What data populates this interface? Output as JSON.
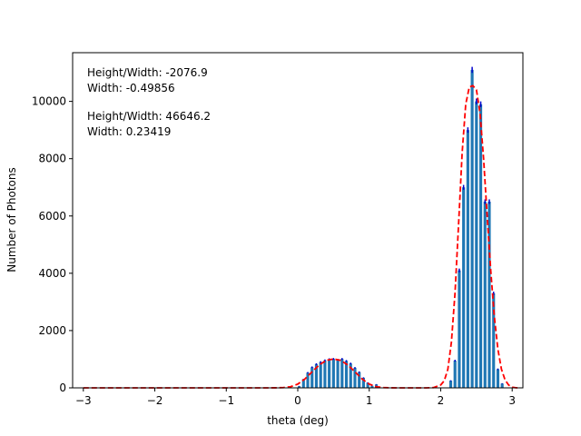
{
  "chart_data": {
    "type": "bar",
    "xlabel": "theta (deg)",
    "ylabel": "Number of Photons",
    "xlim": [
      -3.15,
      3.15
    ],
    "ylim": [
      0,
      11700
    ],
    "xticks": [
      -3,
      -2,
      -1,
      0,
      1,
      2,
      3
    ],
    "yticks": [
      0,
      2000,
      4000,
      6000,
      8000,
      10000
    ],
    "annotations": [
      {
        "lines": [
          "Height/Width: -2076.9",
          "Width: -0.49856"
        ]
      },
      {
        "lines": [
          "Height/Width: 46646.2",
          "Width: 0.23419"
        ]
      }
    ],
    "colors": {
      "bars": "#1f77b4",
      "fit": "#ff0000",
      "errorbar": "#0000cc"
    },
    "bars": {
      "width": 0.04,
      "x": [
        0.02,
        0.08,
        0.14,
        0.2,
        0.26,
        0.32,
        0.38,
        0.44,
        0.5,
        0.56,
        0.62,
        0.68,
        0.74,
        0.8,
        0.86,
        0.92,
        0.98,
        1.04,
        1.1,
        2.14,
        2.2,
        2.26,
        2.32,
        2.38,
        2.44,
        2.5,
        2.56,
        2.62,
        2.68,
        2.74,
        2.8,
        2.86
      ],
      "values": [
        60,
        300,
        530,
        720,
        830,
        900,
        960,
        1000,
        1010,
        980,
        1010,
        940,
        850,
        700,
        550,
        350,
        180,
        70,
        120,
        250,
        950,
        4100,
        7000,
        9000,
        11100,
        10000,
        9900,
        6500,
        6500,
        3300,
        650,
        150
      ]
    },
    "fit_curve": {
      "x": [
        -3.0,
        -2.5,
        -2.0,
        -1.5,
        -1.0,
        -0.5,
        -0.3,
        -0.2,
        -0.1,
        0.0,
        0.1,
        0.2,
        0.3,
        0.4,
        0.5,
        0.6,
        0.7,
        0.8,
        0.9,
        1.0,
        1.1,
        1.2,
        1.3,
        1.4,
        1.5,
        1.6,
        1.7,
        1.8,
        1.9,
        2.0,
        2.05,
        2.1,
        2.15,
        2.2,
        2.25,
        2.3,
        2.35,
        2.4,
        2.45,
        2.5,
        2.55,
        2.6,
        2.65,
        2.7,
        2.75,
        2.8,
        2.85,
        2.9,
        2.95,
        3.0,
        3.05,
        3.1
      ],
      "y": [
        0,
        0,
        0,
        0,
        0,
        0,
        2,
        10,
        40,
        130,
        310,
        560,
        800,
        960,
        1010,
        960,
        800,
        560,
        310,
        130,
        40,
        10,
        2,
        0,
        0,
        0,
        0,
        0,
        10,
        100,
        250,
        650,
        1600,
        3300,
        5700,
        8200,
        9900,
        10500,
        10550,
        10400,
        9600,
        8000,
        6000,
        4100,
        2500,
        1350,
        650,
        280,
        100,
        25,
        5,
        0
      ]
    }
  }
}
